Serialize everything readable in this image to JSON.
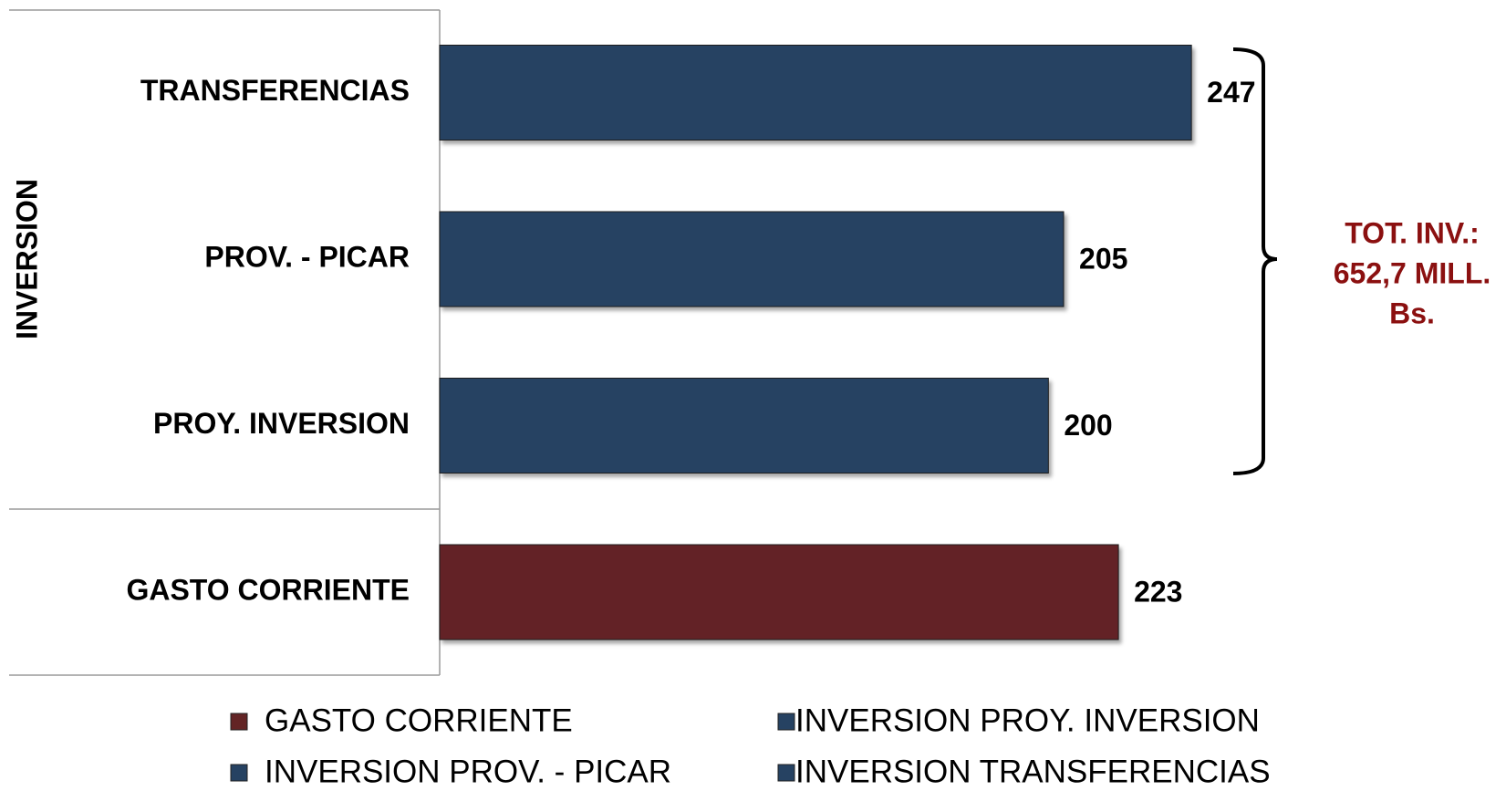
{
  "chart_data": {
    "type": "bar",
    "orientation": "horizontal",
    "group_label": "INVERSION",
    "categories": [
      "GASTO CORRIENTE",
      "PROY. INVERSION",
      "PROV. - PICAR",
      "TRANSFERENCIAS"
    ],
    "series": [
      {
        "name": "GASTO CORRIENTE",
        "color": "#632425",
        "values": [
          223,
          null,
          null,
          null
        ]
      },
      {
        "name": "INVERSION PROY. INVERSION",
        "color": "#264262",
        "values": [
          null,
          200,
          null,
          null
        ]
      },
      {
        "name": "INVERSION PROV. - PICAR",
        "color": "#264262",
        "values": [
          null,
          null,
          205,
          null
        ]
      },
      {
        "name": "INVERSION TRANSFERENCIAS",
        "color": "#264262",
        "values": [
          null,
          null,
          null,
          247
        ]
      }
    ],
    "xlim": [
      0,
      300
    ],
    "annotation": [
      "TOT. INV.:",
      "652,7 MILL.",
      "Bs."
    ],
    "annotation_color": "#8b1010"
  }
}
